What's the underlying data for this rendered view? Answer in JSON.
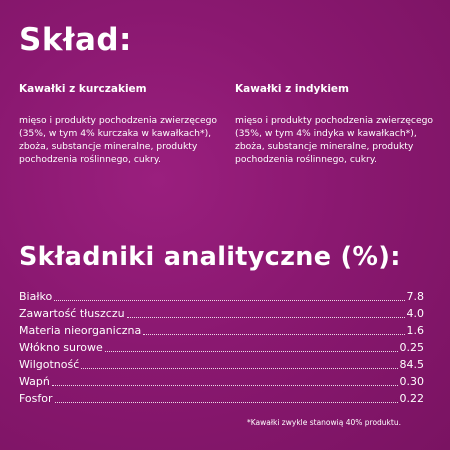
{
  "title": "Skład:",
  "columns": [
    {
      "heading": "Kawałki z kurczakiem",
      "text": "mięso i produkty pochodzenia zwierzęcego (35%, w tym 4% kurczaka w kawałkach*), zboża, substancje mineralne, produkty pochodzenia roślinnego, cukry."
    },
    {
      "heading": "Kawałki z indykiem",
      "text": "mięso i produkty pochodzenia zwierzęcego (35%, w tym 4% indyka w kawałkach*), zboża, substancje mineralne, produkty pochodzenia roślinnego, cukry."
    }
  ],
  "analysis": {
    "title": "Składniki analityczne (%):",
    "rows": [
      {
        "name": "Białko",
        "value": "7.8"
      },
      {
        "name": "Zawartość tłuszczu",
        "value": "4.0"
      },
      {
        "name": "Materia nieorganiczna",
        "value": "1.6"
      },
      {
        "name": "Włókno surowe",
        "value": "0.25"
      },
      {
        "name": "Wilgotność",
        "value": "84.5"
      },
      {
        "name": "Wapń",
        "value": "0.30"
      },
      {
        "name": "Fosfor",
        "value": "0.22"
      }
    ]
  },
  "footnote": "*Kawałki zwykle stanowią 40% produktu."
}
